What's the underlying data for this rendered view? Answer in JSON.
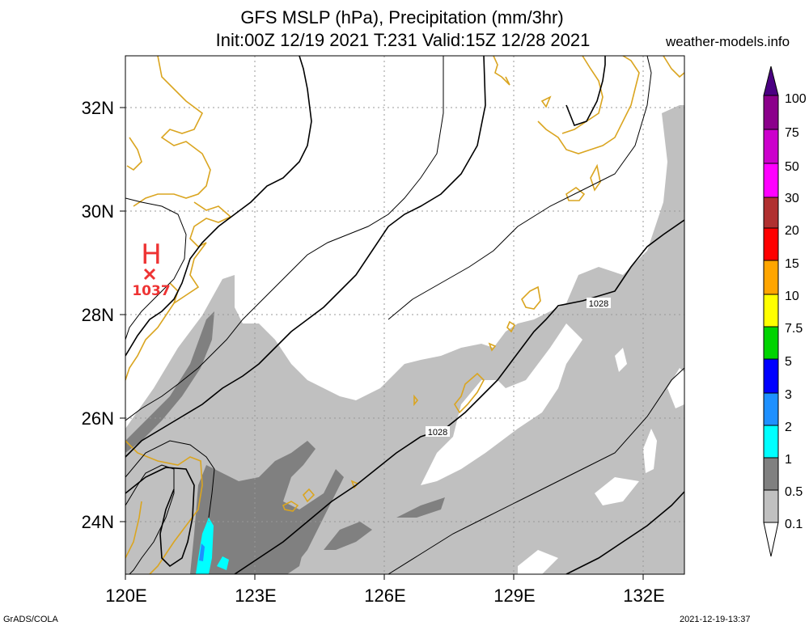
{
  "header": {
    "title_line1": "GFS MSLP (hPa), Precipitation (mm/3hr)",
    "title_line2": "Init:00Z 12/19 2021 T:231 Valid:15Z 12/28 2021",
    "site": "weather-models.info"
  },
  "footer": {
    "left": "GrADS/COLA",
    "right": "2021-12-19-13:37"
  },
  "map": {
    "y_ticks": [
      "32N",
      "30N",
      "28N",
      "26N",
      "24N"
    ],
    "x_ticks": [
      "120E",
      "123E",
      "126E",
      "129E",
      "132E"
    ],
    "high_label": "H",
    "high_value": "1037",
    "isobar_labels": [
      "1028",
      "1028"
    ],
    "colors": {
      "coast": "#daa520",
      "high": "#ee3333",
      "precip_light": "#c0c0c0",
      "precip_mid": "#808080",
      "precip_heavy_cyan": "#00ffff",
      "precip_blue": "#1e90ff"
    }
  },
  "colorbar": {
    "labels": [
      "100",
      "75",
      "50",
      "30",
      "20",
      "15",
      "10",
      "7.5",
      "5",
      "3",
      "2",
      "1",
      "0.5",
      "0.1"
    ],
    "colors": [
      "#4b0082",
      "#8b008b",
      "#cc00cc",
      "#ff00ff",
      "#b03030",
      "#ff0000",
      "#ffa500",
      "#ffff00",
      "#00d400",
      "#0000ff",
      "#1e90ff",
      "#00ffff",
      "#808080",
      "#c0c0c0",
      "#ffffff"
    ]
  }
}
